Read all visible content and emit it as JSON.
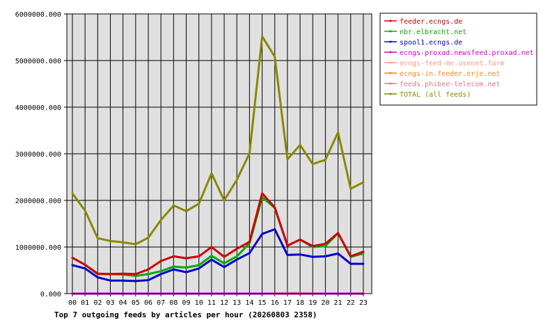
{
  "chart_data": {
    "type": "line",
    "title": "Top 7 outgoing feeds by articles per hour (20260803 2358)",
    "x": [
      "00",
      "01",
      "02",
      "03",
      "04",
      "05",
      "06",
      "07",
      "08",
      "09",
      "10",
      "11",
      "12",
      "13",
      "14",
      "15",
      "16",
      "17",
      "18",
      "19",
      "20",
      "21",
      "22",
      "23"
    ],
    "y_ticks": [
      "0.000",
      "1000000.000",
      "2000000.000",
      "3000000.000",
      "4000000.000",
      "5000000.000",
      "6000000.000"
    ],
    "ylim": [
      0,
      6000000
    ],
    "grid": true,
    "legend_position": "right",
    "series": [
      {
        "name": "feeder.ecngs.de",
        "color": "#cc0000",
        "values": [
          770000,
          620000,
          430000,
          420000,
          430000,
          420000,
          520000,
          700000,
          800000,
          760000,
          800000,
          1000000,
          790000,
          960000,
          1110000,
          2150000,
          1850000,
          1030000,
          1160000,
          1020000,
          1070000,
          1300000,
          800000,
          900000
        ]
      },
      {
        "name": "nbr.elbracht.net",
        "color": "#00aa00",
        "values": [
          770000,
          620000,
          420000,
          420000,
          410000,
          380000,
          420000,
          480000,
          580000,
          560000,
          610000,
          810000,
          650000,
          800000,
          1080000,
          2070000,
          1840000,
          1030000,
          1160000,
          1000000,
          1020000,
          1300000,
          790000,
          860000
        ]
      },
      {
        "name": "spool1.ecngs.de",
        "color": "#0000cc",
        "values": [
          610000,
          540000,
          350000,
          280000,
          280000,
          270000,
          290000,
          420000,
          520000,
          460000,
          540000,
          730000,
          570000,
          730000,
          870000,
          1280000,
          1380000,
          830000,
          840000,
          790000,
          800000,
          860000,
          640000,
          640000
        ]
      },
      {
        "name": "ecngs-proxad.newsfeed.proxad.net",
        "color": "#cc00cc",
        "values": [
          0,
          0,
          0,
          0,
          0,
          0,
          0,
          0,
          0,
          0,
          0,
          0,
          0,
          0,
          0,
          0,
          0,
          0,
          0,
          0,
          0,
          0,
          0,
          0
        ]
      },
      {
        "name": "ecngs-feed-me.usenet.farm",
        "color": "#ff9977",
        "values": [
          0,
          0,
          0,
          0,
          0,
          0,
          0,
          0,
          0,
          0,
          0,
          0,
          0,
          0,
          0,
          0,
          0,
          10000,
          10000,
          0,
          0,
          0,
          0,
          0
        ]
      },
      {
        "name": "ecngs-in.feeder.erje.net",
        "color": "#ff8800",
        "values": [
          0,
          0,
          0,
          0,
          0,
          0,
          0,
          0,
          0,
          0,
          0,
          0,
          0,
          0,
          0,
          0,
          0,
          0,
          0,
          0,
          0,
          0,
          0,
          0
        ]
      },
      {
        "name": "feeds.phibee-telecom.net",
        "color": "#dd7788",
        "values": [
          0,
          0,
          0,
          0,
          0,
          0,
          0,
          0,
          0,
          0,
          0,
          0,
          0,
          0,
          0,
          0,
          0,
          0,
          0,
          0,
          0,
          0,
          0,
          0
        ]
      },
      {
        "name": "TOTAL (all feeds)",
        "color": "#888800",
        "values": [
          2150000,
          1780000,
          1190000,
          1130000,
          1100000,
          1060000,
          1200000,
          1580000,
          1890000,
          1770000,
          1930000,
          2580000,
          2000000,
          2440000,
          3010000,
          5520000,
          5080000,
          2880000,
          3190000,
          2780000,
          2870000,
          3460000,
          2250000,
          2390000
        ]
      }
    ]
  }
}
